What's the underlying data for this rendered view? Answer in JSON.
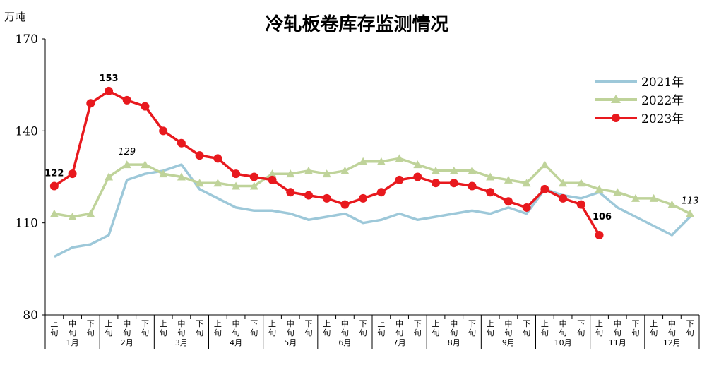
{
  "chart_data": {
    "type": "line",
    "title": "冷轧板卷库存监测情况",
    "ylabel": "万吨",
    "ylim": [
      80,
      170
    ],
    "yticks": [
      80,
      110,
      140,
      170
    ],
    "xlabels": [
      "上旬",
      "中旬",
      "下旬"
    ],
    "months": [
      "1月",
      "2月",
      "3月",
      "4月",
      "5月",
      "6月",
      "7月",
      "8月",
      "9月",
      "10月",
      "11月",
      "12月"
    ],
    "colors": {
      "2021年": "#9DC8D9",
      "2022年": "#BFD39A",
      "2023年": "#E8191E"
    },
    "series": [
      {
        "name": "2021年",
        "values": [
          99,
          102,
          103,
          106,
          124,
          126,
          127,
          129,
          121,
          118,
          115,
          114,
          114,
          113,
          111,
          112,
          113,
          110,
          111,
          113,
          111,
          112,
          113,
          114,
          113,
          115,
          113,
          121,
          119,
          118,
          120,
          115,
          112,
          109,
          106,
          112
        ]
      },
      {
        "name": "2022年",
        "values": [
          113,
          112,
          113,
          125,
          129,
          129,
          126,
          125,
          123,
          123,
          122,
          122,
          126,
          126,
          127,
          126,
          127,
          130,
          130,
          131,
          129,
          127,
          127,
          127,
          125,
          124,
          123,
          129,
          123,
          123,
          121,
          120,
          118,
          118,
          116,
          113
        ]
      },
      {
        "name": "2023年",
        "values": [
          122,
          126,
          149,
          153,
          150,
          148,
          140,
          136,
          132,
          131,
          126,
          125,
          124,
          120,
          119,
          118,
          116,
          118,
          120,
          124,
          125,
          123,
          123,
          122,
          120,
          117,
          115,
          121,
          118,
          116,
          106
        ]
      }
    ],
    "annotations": [
      {
        "series": "2023年",
        "index": 0,
        "text": "122"
      },
      {
        "series": "2023年",
        "index": 3,
        "text": "153"
      },
      {
        "series": "2022年",
        "index": 4,
        "text": "129"
      },
      {
        "series": "2023年",
        "index": 30,
        "text": "106"
      },
      {
        "series": "2022年",
        "index": 35,
        "text": "113"
      }
    ],
    "grid": false,
    "legend_position": "right"
  }
}
